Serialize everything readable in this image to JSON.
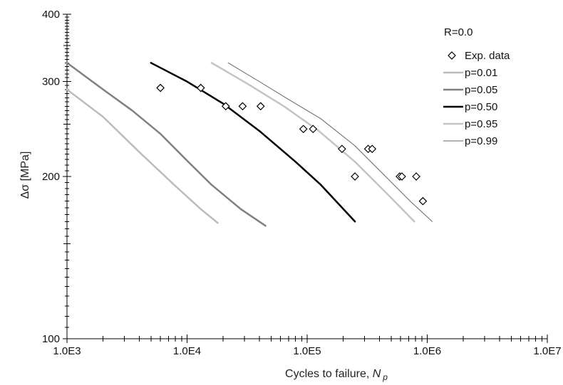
{
  "chart_data": {
    "type": "line",
    "title": "",
    "xlabel": "Cycles to failure, ",
    "xlabel_symbol": "N",
    "xlabel_subscript": "p",
    "ylabel": "Δσ  [MPa]",
    "xscale": "log",
    "yscale": "log",
    "xlim": [
      1000,
      10000000
    ],
    "ylim": [
      100,
      400
    ],
    "x_ticks": [
      {
        "value": 1000,
        "label": "1.0E3"
      },
      {
        "value": 10000,
        "label": "1.0E4"
      },
      {
        "value": 100000,
        "label": "1.0E5"
      },
      {
        "value": 1000000,
        "label": "1.0E6"
      },
      {
        "value": 10000000,
        "label": "1.0E7"
      }
    ],
    "y_ticks": [
      {
        "value": 100,
        "label": "100"
      },
      {
        "value": 200,
        "label": "200"
      },
      {
        "value": 300,
        "label": "300"
      },
      {
        "value": 400,
        "label": "400"
      }
    ],
    "legend_title": "R=0.0",
    "legend_position": "top-right",
    "scatter": {
      "name": "Exp. data",
      "marker": "diamond",
      "points": [
        [
          6000,
          292
        ],
        [
          13000,
          292
        ],
        [
          21000,
          270
        ],
        [
          29000,
          270
        ],
        [
          41000,
          270
        ],
        [
          93000,
          245
        ],
        [
          112000,
          245
        ],
        [
          195000,
          225
        ],
        [
          250000,
          200
        ],
        [
          322000,
          225
        ],
        [
          348000,
          225
        ],
        [
          590000,
          200
        ],
        [
          615000,
          200
        ],
        [
          810000,
          200
        ],
        [
          920000,
          180
        ]
      ]
    },
    "series": [
      {
        "name": "p=0.01",
        "color": "#bcbcbc",
        "width": 2.5,
        "points": [
          [
            1000,
            290
          ],
          [
            2000,
            258
          ],
          [
            4000,
            222
          ],
          [
            8000,
            192
          ],
          [
            13000,
            174
          ],
          [
            18000,
            164
          ]
        ]
      },
      {
        "name": "p=0.05",
        "color": "#808080",
        "width": 2.5,
        "points": [
          [
            1000,
            325
          ],
          [
            2000,
            290
          ],
          [
            3500,
            265
          ],
          [
            6000,
            240
          ],
          [
            10000,
            214
          ],
          [
            16000,
            193
          ],
          [
            28000,
            174
          ],
          [
            45000,
            162
          ]
        ]
      },
      {
        "name": "p=0.50",
        "color": "#000000",
        "width": 2.5,
        "points": [
          [
            5000,
            325
          ],
          [
            10000,
            300
          ],
          [
            20000,
            273
          ],
          [
            40000,
            243
          ],
          [
            80000,
            213
          ],
          [
            130000,
            193
          ],
          [
            250000,
            165
          ]
        ]
      },
      {
        "name": "p=0.95",
        "color": "#c4c4c4",
        "width": 2.5,
        "points": [
          [
            16000,
            325
          ],
          [
            32000,
            297
          ],
          [
            64000,
            270
          ],
          [
            125000,
            243
          ],
          [
            250000,
            213
          ],
          [
            450000,
            187
          ],
          [
            780000,
            165
          ]
        ]
      },
      {
        "name": "p=0.99",
        "color": "#666666",
        "width": 1,
        "points": [
          [
            22000,
            325
          ],
          [
            40000,
            300
          ],
          [
            70000,
            278
          ],
          [
            130000,
            256
          ],
          [
            250000,
            228
          ],
          [
            450000,
            200
          ],
          [
            720000,
            180
          ],
          [
            1100000,
            165
          ]
        ]
      }
    ],
    "colors": {
      "axis": "#000000",
      "marker_stroke": "#000000",
      "background": "#ffffff"
    }
  }
}
